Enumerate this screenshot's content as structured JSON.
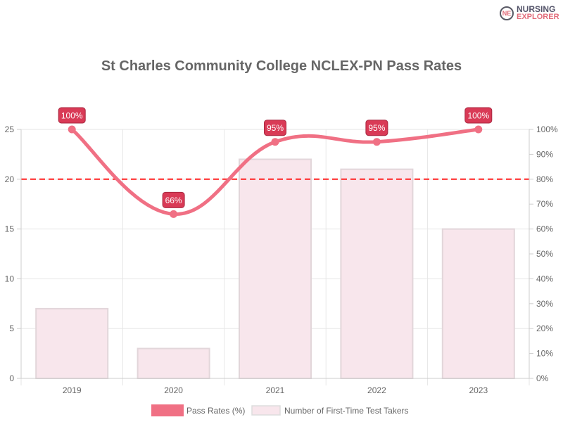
{
  "logo": {
    "line1": "NURSING",
    "line2": "EXPLORER"
  },
  "chart_data": {
    "type": "bar+line",
    "title": "St Charles Community College NCLEX-PN Pass Rates",
    "categories": [
      "2019",
      "2020",
      "2021",
      "2022",
      "2023"
    ],
    "series": [
      {
        "name": "Pass Rates (%)",
        "type": "line",
        "axis": "right",
        "values": [
          100,
          66,
          95,
          95,
          100
        ],
        "labels": [
          "100%",
          "66%",
          "95%",
          "95%",
          "100%"
        ],
        "color": "#f07084"
      },
      {
        "name": "Number of First-Time Test Takers",
        "type": "bar",
        "axis": "left",
        "values": [
          7,
          3,
          22,
          21,
          15
        ],
        "color": "#f8e6ec"
      }
    ],
    "left_axis": {
      "ylim": [
        0,
        25
      ],
      "ticks": [
        "0",
        "5",
        "10",
        "15",
        "20",
        "25"
      ]
    },
    "right_axis": {
      "ylim": [
        0,
        100
      ],
      "ticks": [
        "0%",
        "10%",
        "20%",
        "30%",
        "40%",
        "50%",
        "60%",
        "70%",
        "80%",
        "90%",
        "100%"
      ]
    },
    "threshold": {
      "value": 80,
      "axis": "right",
      "color": "#ff2020",
      "style": "dashed"
    },
    "grid": true,
    "legend": "bottom"
  }
}
